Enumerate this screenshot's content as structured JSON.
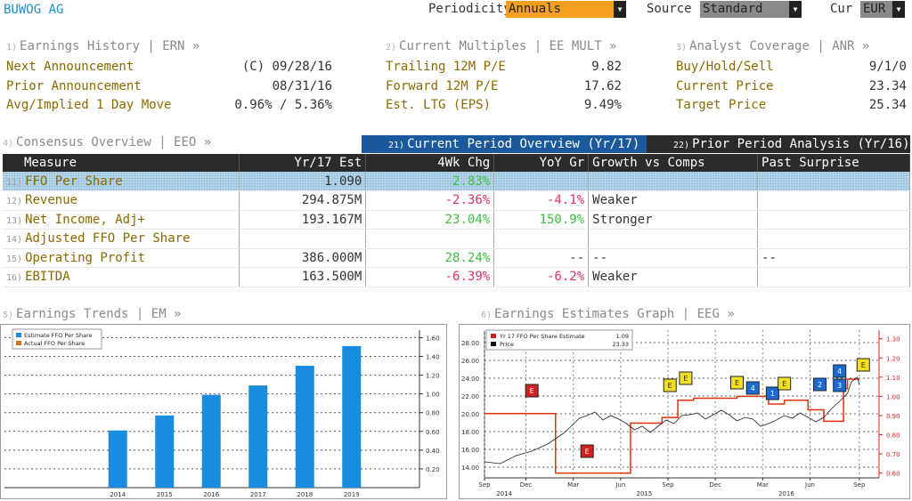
{
  "header": {
    "ticker": "BUWOG AG",
    "periodicity_label": "Periodicity",
    "periodicity_value": "Annuals",
    "source_label": "Source",
    "source_value": "Standard",
    "cur_label": "Cur",
    "cur_value": "EUR"
  },
  "earnings_history": {
    "num": "1)",
    "title": "Earnings History | ERN »",
    "rows": [
      {
        "label": "Next Announcement",
        "value": "(C)  09/28/16"
      },
      {
        "label": "Prior Announcement",
        "value": "08/31/16"
      },
      {
        "label": "Avg/Implied 1 Day Move",
        "value": "0.96% / 5.36%"
      }
    ]
  },
  "current_multiples": {
    "num": "2)",
    "title": "Current Multiples | EE MULT »",
    "rows": [
      {
        "label": "Trailing 12M P/E",
        "value": "9.82"
      },
      {
        "label": "Forward 12M P/E",
        "value": "17.62"
      },
      {
        "label": "Est. LTG (EPS)",
        "value": "9.49%"
      }
    ]
  },
  "analyst_coverage": {
    "num": "3)",
    "title": "Analyst Coverage | ANR »",
    "rows": [
      {
        "label": "Buy/Hold/Sell",
        "value": "9/1/0"
      },
      {
        "label": "Current Price",
        "value": "23.34"
      },
      {
        "label": "Target Price",
        "value": "25.34"
      }
    ]
  },
  "consensus": {
    "num": "4)",
    "title": "Consensus Overview | EEO »",
    "tab_current_num": "21)",
    "tab_current": "Current Period Overview (Yr/17)",
    "tab_prior_num": "22)",
    "tab_prior": "Prior Period Analysis (Yr/16)",
    "columns": [
      "Measure",
      "Yr/17 Est",
      "4Wk Chg",
      "YoY Gr",
      "Growth vs Comps",
      "Past Surprise"
    ],
    "rows": [
      {
        "num": "11)",
        "measure": "FFO Per Share",
        "est": "1.090",
        "chg": "2.83%",
        "chg_dir": "up",
        "yoy": "",
        "yoy_dir": "",
        "growth": "",
        "surprise": ""
      },
      {
        "num": "12)",
        "measure": "Revenue",
        "est": "294.875M",
        "chg": "-2.36%",
        "chg_dir": "down",
        "yoy": "-4.1%",
        "yoy_dir": "down",
        "growth": "Weaker",
        "surprise": ""
      },
      {
        "num": "13)",
        "measure": "Net Income, Adj+",
        "est": "193.167M",
        "chg": "23.04%",
        "chg_dir": "up",
        "yoy": "150.9%",
        "yoy_dir": "up",
        "growth": "Stronger",
        "surprise": ""
      },
      {
        "num": "14)",
        "measure": "Adjusted FFO Per Share",
        "est": "",
        "chg": "",
        "chg_dir": "",
        "yoy": "",
        "yoy_dir": "",
        "growth": "",
        "surprise": ""
      },
      {
        "num": "15)",
        "measure": "Operating Profit",
        "est": "386.000M",
        "chg": "28.24%",
        "chg_dir": "up",
        "yoy": "--",
        "yoy_dir": "flat",
        "growth": "--",
        "surprise": "--"
      },
      {
        "num": "16)",
        "measure": "EBITDA",
        "est": "163.500M",
        "chg": "-6.39%",
        "chg_dir": "down",
        "yoy": "-6.2%",
        "yoy_dir": "down",
        "growth": "Weaker",
        "surprise": ""
      }
    ]
  },
  "trends_title_num": "5)",
  "trends_title": "Earnings Trends | EM »",
  "graph_title_num": "6)",
  "graph_title": "Earnings Estimates Graph | EEG »",
  "colors": {
    "estimate": "#1a8ce0",
    "actual": "#e06a10",
    "ticker": "#1f8fc9",
    "tab_active": "#1a5a9c",
    "up": "#3cc23c",
    "down": "#e0306a"
  },
  "chart_data": [
    {
      "type": "bar",
      "categories": [
        "2014",
        "2015",
        "2016",
        "2017",
        "2018",
        "2019"
      ],
      "series": [
        {
          "name": "Estimate FFO Per Share",
          "values": [
            0.61,
            0.77,
            0.99,
            1.09,
            1.3,
            1.51
          ]
        },
        {
          "name": "Actual FFO Per Share",
          "values": [
            null,
            null,
            null,
            null,
            null,
            null
          ]
        }
      ],
      "y_ticks": [
        "1.60",
        "1.40",
        "1.20",
        "1.00",
        "0.80",
        "0.60",
        "0.40",
        "0.20"
      ],
      "ylim": [
        0,
        1.68
      ],
      "grid": true,
      "legend": "top-left"
    },
    {
      "type": "line",
      "x_ticks": [
        "Sep",
        "Dec",
        "Mar",
        "Jun",
        "Sep",
        "Dec",
        "Mar",
        "Jun",
        "Sep"
      ],
      "x_years": [
        "2014",
        "2015",
        "2016"
      ],
      "left_ticks": [
        "28.00",
        "26.00",
        "24.00",
        "22.00",
        "20.00",
        "18.00",
        "16.00",
        "14.00"
      ],
      "right_ticks": [
        "1.30",
        "1.20",
        "1.10",
        "1.00",
        "0.90",
        "0.80",
        "0.70",
        "0.60"
      ],
      "left_lim": [
        12.8,
        29.4
      ],
      "right_lim": [
        0.575,
        1.345
      ],
      "series": [
        {
          "name": "Yr 17 FFO Per Share Estimate",
          "last": "1.09",
          "axis": "right",
          "points": [
            [
              0.0,
              0.91
            ],
            [
              0.18,
              0.91
            ],
            [
              0.18,
              0.6
            ],
            [
              0.37,
              0.6
            ],
            [
              0.37,
              0.86
            ],
            [
              0.45,
              0.86
            ],
            [
              0.45,
              0.89
            ],
            [
              0.49,
              0.89
            ],
            [
              0.49,
              0.98
            ],
            [
              0.53,
              0.98
            ],
            [
              0.53,
              0.99
            ],
            [
              0.64,
              0.99
            ],
            [
              0.64,
              1.0
            ],
            [
              0.72,
              1.0
            ],
            [
              0.72,
              0.96
            ],
            [
              0.76,
              0.96
            ],
            [
              0.76,
              0.98
            ],
            [
              0.82,
              0.98
            ],
            [
              0.82,
              0.93
            ],
            [
              0.86,
              0.93
            ],
            [
              0.86,
              0.87
            ],
            [
              0.91,
              0.87
            ],
            [
              0.91,
              1.04
            ],
            [
              0.92,
              1.04
            ],
            [
              0.92,
              1.09
            ],
            [
              0.95,
              1.09
            ]
          ]
        },
        {
          "name": "Price",
          "last": "23.33",
          "axis": "left",
          "points": [
            [
              0.0,
              14.6
            ],
            [
              0.04,
              14.4
            ],
            [
              0.08,
              15.3
            ],
            [
              0.12,
              15.8
            ],
            [
              0.16,
              16.6
            ],
            [
              0.2,
              17.8
            ],
            [
              0.22,
              18.6
            ],
            [
              0.24,
              19.5
            ],
            [
              0.26,
              19.8
            ],
            [
              0.28,
              20.2
            ],
            [
              0.3,
              19.3
            ],
            [
              0.32,
              19.8
            ],
            [
              0.34,
              19.4
            ],
            [
              0.36,
              18.9
            ],
            [
              0.38,
              18.2
            ],
            [
              0.4,
              18.6
            ],
            [
              0.42,
              17.9
            ],
            [
              0.44,
              18.6
            ],
            [
              0.46,
              19.3
            ],
            [
              0.48,
              18.9
            ],
            [
              0.5,
              19.8
            ],
            [
              0.52,
              19.9
            ],
            [
              0.54,
              20.1
            ],
            [
              0.56,
              19.4
            ],
            [
              0.58,
              19.9
            ],
            [
              0.6,
              20.4
            ],
            [
              0.62,
              19.9
            ],
            [
              0.64,
              19.2
            ],
            [
              0.66,
              19.6
            ],
            [
              0.68,
              19.4
            ],
            [
              0.7,
              18.6
            ],
            [
              0.72,
              18.9
            ],
            [
              0.74,
              19.3
            ],
            [
              0.76,
              19.8
            ],
            [
              0.78,
              19.5
            ],
            [
              0.8,
              20.1
            ],
            [
              0.82,
              19.6
            ],
            [
              0.84,
              19.1
            ],
            [
              0.86,
              19.6
            ],
            [
              0.88,
              20.6
            ],
            [
              0.9,
              21.4
            ],
            [
              0.92,
              22.3
            ],
            [
              0.93,
              23.6
            ],
            [
              0.945,
              24.1
            ],
            [
              0.95,
              23.3
            ]
          ]
        }
      ],
      "markers": [
        {
          "label": "E",
          "type": "earnings",
          "x": 0.12,
          "y": 22.6
        },
        {
          "label": "E",
          "type": "earnings",
          "x": 0.26,
          "y": 15.8
        },
        {
          "label": "E",
          "type": "estimate",
          "x": 0.47,
          "y": 23.2
        },
        {
          "label": "E",
          "type": "estimate",
          "x": 0.51,
          "y": 24.0
        },
        {
          "label": "E",
          "type": "estimate",
          "x": 0.64,
          "y": 23.5
        },
        {
          "label": "4",
          "type": "analyst",
          "x": 0.68,
          "y": 22.9
        },
        {
          "label": "1",
          "type": "analyst",
          "x": 0.73,
          "y": 22.3
        },
        {
          "label": "E",
          "type": "estimate",
          "x": 0.76,
          "y": 23.4
        },
        {
          "label": "2",
          "type": "analyst",
          "x": 0.85,
          "y": 23.3
        },
        {
          "label": "4",
          "type": "analyst",
          "x": 0.9,
          "y": 24.8
        },
        {
          "label": "3",
          "type": "analyst",
          "x": 0.9,
          "y": 23.2
        },
        {
          "label": "E",
          "type": "estimate",
          "x": 0.96,
          "y": 25.5
        }
      ],
      "legend": "top-left"
    }
  ]
}
